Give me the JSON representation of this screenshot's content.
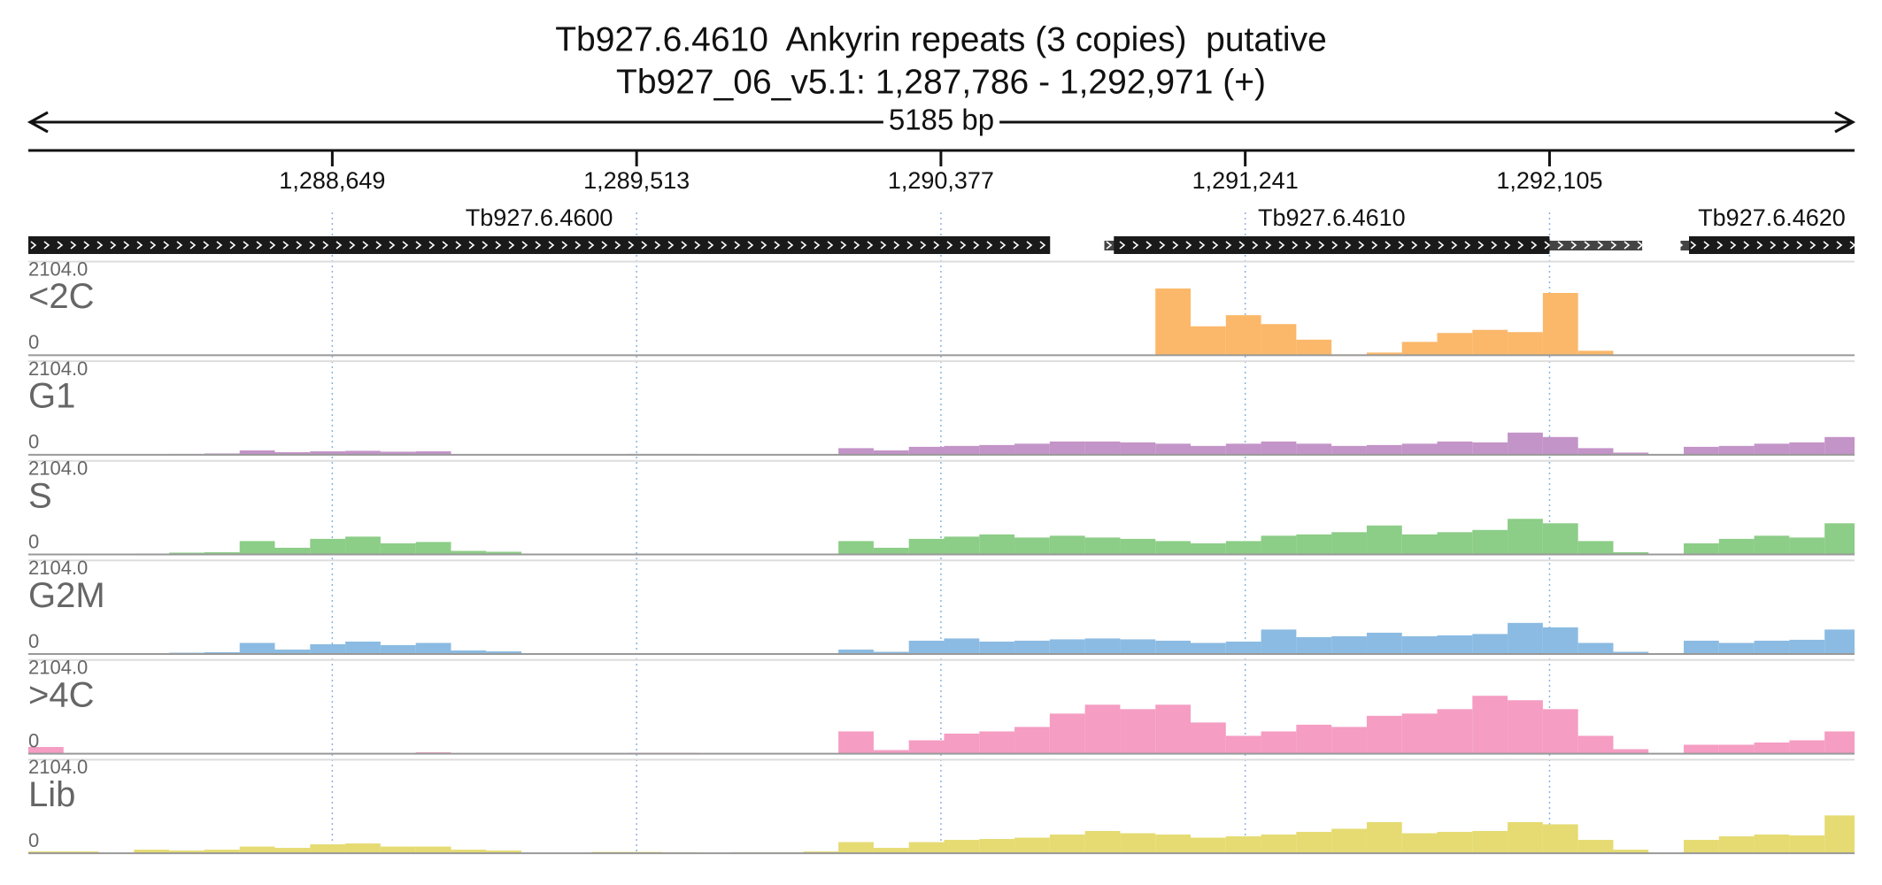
{
  "chart_data": {
    "type": "histogram",
    "title": "Tb927.6.4610  Ankyrin repeats (3 copies)  putative",
    "subtitle": "Tb927_06_v5.1: 1,287,786 - 1,292,971 (+)",
    "span_label": "5185 bp",
    "xlim": [
      1287786,
      1292971
    ],
    "xticks": [
      {
        "value": 1288649,
        "label": "1,288,649"
      },
      {
        "value": 1289513,
        "label": "1,289,513"
      },
      {
        "value": 1290377,
        "label": "1,290,377"
      },
      {
        "value": 1291241,
        "label": "1,291,241"
      },
      {
        "value": 1292105,
        "label": "1,292,105"
      }
    ],
    "grid": true,
    "genes": [
      {
        "name": "Tb927.6.4600",
        "start": 1287786,
        "end": 1290687
      },
      {
        "name": "Tb927.6.4610",
        "start": 1290841,
        "end": 1292368,
        "cds_start": 1290868,
        "cds_end": 1292105
      },
      {
        "name": "Tb927.6.4620",
        "start": 1292477,
        "end": 1292971,
        "cds_start": 1292501,
        "cds_end": 1292971
      }
    ],
    "ylim": [
      0,
      2104
    ],
    "yticks": [
      0,
      {
        "value": 2104,
        "label": "2104.0"
      }
    ],
    "bins": [
      1287786,
      1287886,
      1287986,
      1288086,
      1288186,
      1288286,
      1288386,
      1288486,
      1288586,
      1288686,
      1288786,
      1288886,
      1288986,
      1289086,
      1289186,
      1289286,
      1289386,
      1289486,
      1289586,
      1289686,
      1289786,
      1289886,
      1289986,
      1290086,
      1290186,
      1290286,
      1290386,
      1290486,
      1290586,
      1290686,
      1290786,
      1290886,
      1290986,
      1291086,
      1291186,
      1291286,
      1291386,
      1291486,
      1291586,
      1291686,
      1291786,
      1291886,
      1291986,
      1292086,
      1292186,
      1292286,
      1292386,
      1292486,
      1292586,
      1292686,
      1292786,
      1292886,
      1292971
    ],
    "series": [
      {
        "name": "<2C",
        "color": "#fbb86a",
        "values": [
          0,
          0,
          0,
          0,
          0,
          0,
          0,
          0,
          0,
          0,
          0,
          0,
          0,
          0,
          0,
          0,
          0,
          0,
          0,
          0,
          0,
          0,
          0,
          0,
          0,
          0,
          0,
          0,
          0,
          0,
          0,
          0,
          1500,
          650,
          900,
          700,
          350,
          20,
          60,
          300,
          500,
          570,
          520,
          1400,
          100,
          0,
          0,
          0,
          0,
          0,
          0,
          0
        ]
      },
      {
        "name": "G1",
        "color": "#c394c8",
        "values": [
          0,
          0,
          5,
          10,
          20,
          30,
          100,
          60,
          80,
          90,
          70,
          80,
          0,
          0,
          0,
          0,
          0,
          20,
          20,
          0,
          0,
          0,
          0,
          150,
          100,
          180,
          200,
          220,
          250,
          300,
          300,
          280,
          250,
          200,
          250,
          300,
          250,
          200,
          220,
          250,
          300,
          280,
          500,
          400,
          150,
          50,
          0,
          180,
          200,
          250,
          280,
          400
        ]
      },
      {
        "name": "S",
        "color": "#8ccd87",
        "values": [
          0,
          0,
          0,
          20,
          40,
          50,
          300,
          150,
          350,
          400,
          250,
          280,
          80,
          60,
          0,
          0,
          0,
          0,
          0,
          0,
          0,
          0,
          0,
          300,
          150,
          350,
          400,
          450,
          380,
          420,
          380,
          350,
          300,
          250,
          300,
          420,
          450,
          500,
          650,
          450,
          500,
          550,
          800,
          700,
          300,
          50,
          0,
          250,
          350,
          420,
          380,
          700
        ]
      },
      {
        "name": "G2M",
        "color": "#8bbbe2",
        "values": [
          0,
          0,
          0,
          20,
          30,
          40,
          250,
          100,
          220,
          280,
          200,
          250,
          80,
          60,
          0,
          0,
          0,
          20,
          20,
          0,
          0,
          0,
          0,
          100,
          50,
          300,
          350,
          280,
          300,
          330,
          350,
          330,
          300,
          250,
          280,
          550,
          380,
          400,
          480,
          400,
          420,
          450,
          700,
          600,
          250,
          50,
          0,
          300,
          250,
          300,
          320,
          550
        ]
      },
      {
        "name": ">4C",
        "color": "#f59dc3",
        "values": [
          150,
          0,
          0,
          0,
          0,
          0,
          0,
          0,
          0,
          0,
          0,
          30,
          0,
          0,
          0,
          0,
          0,
          20,
          20,
          0,
          0,
          0,
          0,
          500,
          80,
          300,
          450,
          500,
          600,
          900,
          1100,
          1000,
          1100,
          700,
          400,
          500,
          650,
          600,
          850,
          900,
          1000,
          1300,
          1200,
          1000,
          400,
          100,
          0,
          200,
          200,
          250,
          300,
          500
        ]
      },
      {
        "name": "Lib",
        "color": "#e5db72",
        "values": [
          40,
          40,
          0,
          80,
          60,
          80,
          150,
          120,
          200,
          220,
          150,
          150,
          80,
          60,
          0,
          0,
          30,
          30,
          20,
          0,
          20,
          20,
          40,
          250,
          120,
          250,
          300,
          320,
          350,
          420,
          500,
          450,
          420,
          350,
          380,
          420,
          480,
          550,
          700,
          450,
          480,
          500,
          700,
          650,
          300,
          80,
          0,
          300,
          380,
          420,
          400,
          850
        ]
      }
    ]
  }
}
